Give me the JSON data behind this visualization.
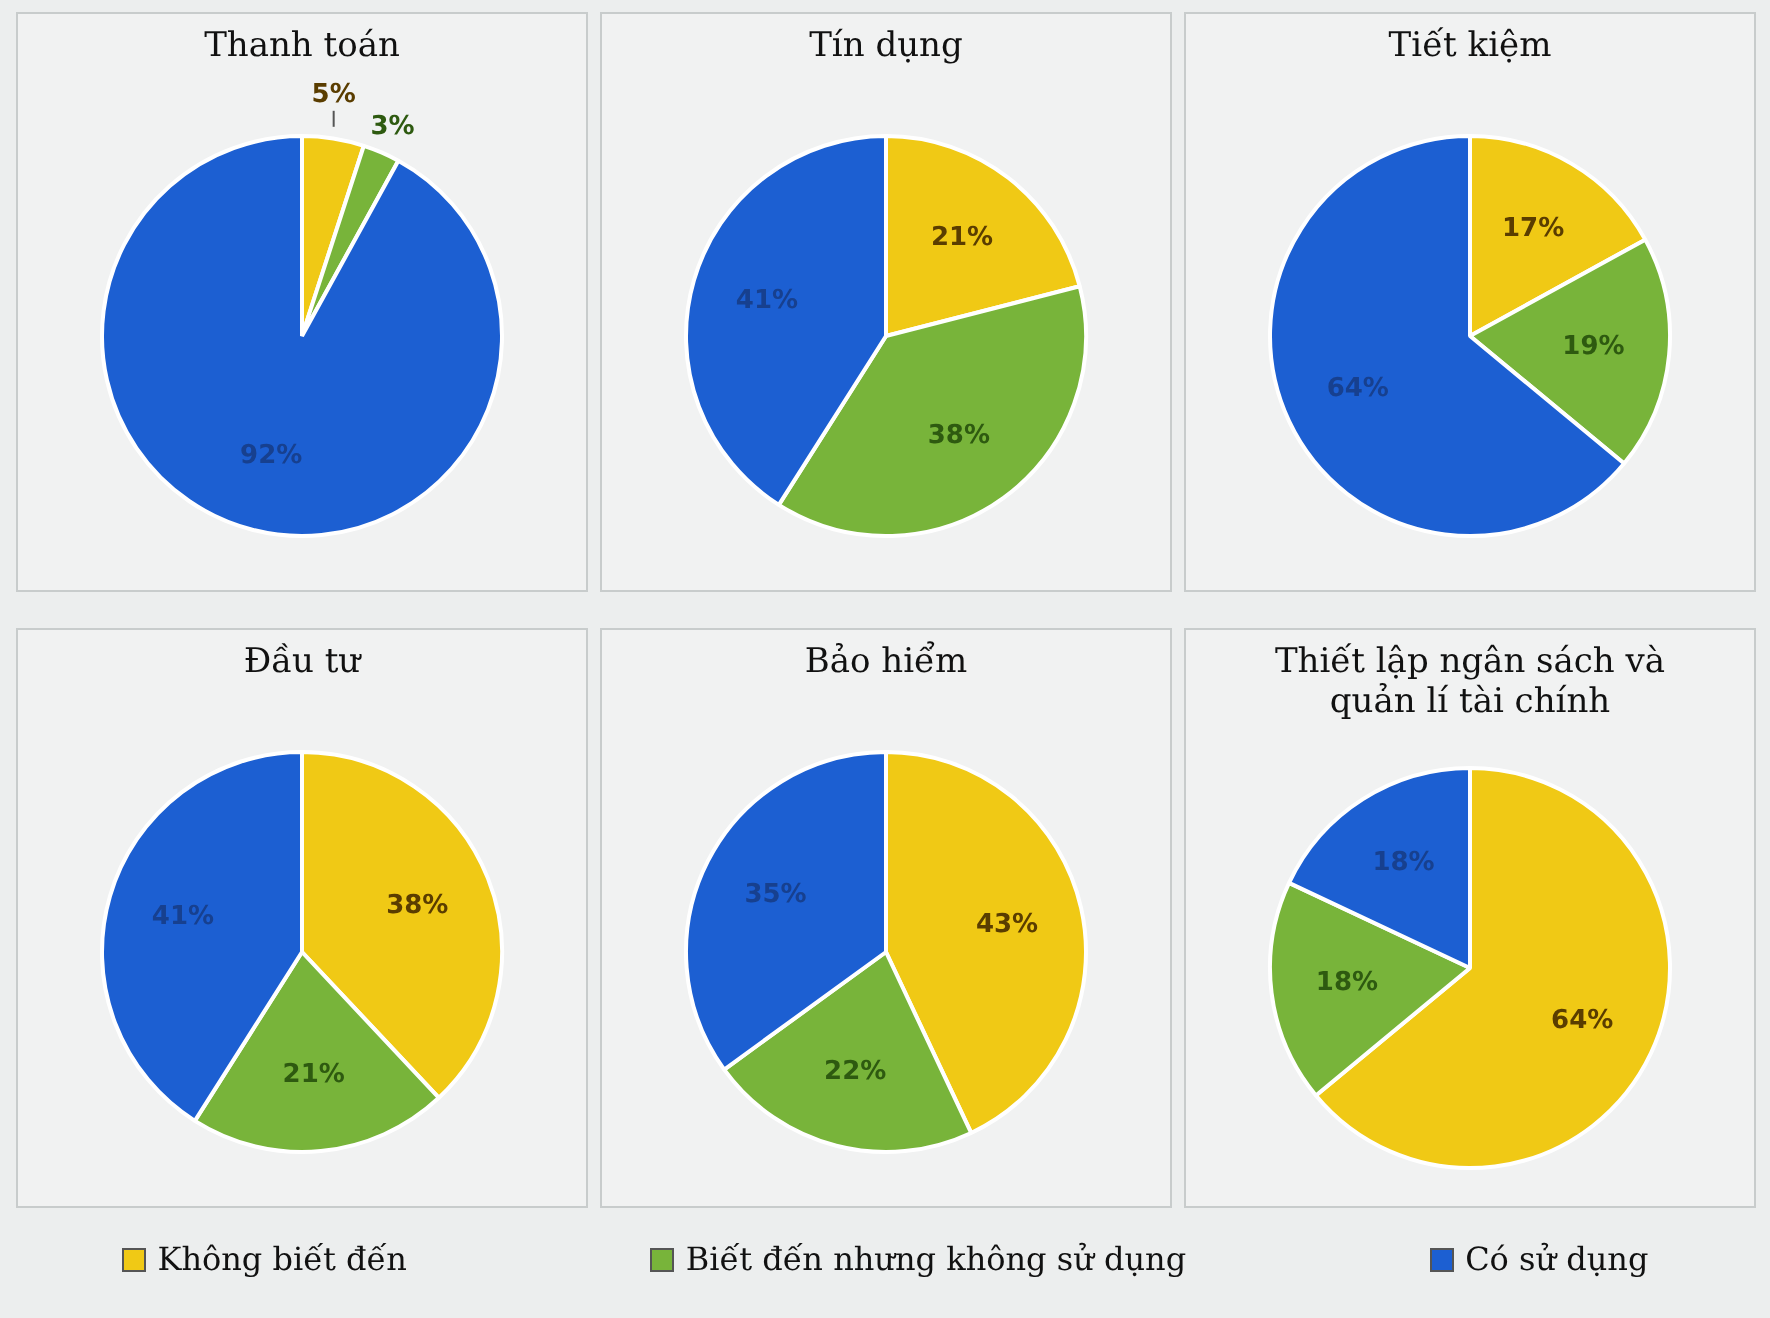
{
  "chart_data": [
    {
      "type": "pie",
      "title": "Thanh toán",
      "categories": [
        "Không biết đến",
        "Biết đến nhưng không sử dụng",
        "Có sử dụng"
      ],
      "values": [
        5,
        3,
        92
      ],
      "value_labels": [
        "5%",
        "3%",
        "92%"
      ],
      "colors": [
        "#f0c915",
        "#78b43a",
        "#1c5fd2"
      ],
      "legend": "bottom"
    },
    {
      "type": "pie",
      "title": "Tín dụng",
      "categories": [
        null,
        null,
        null
      ],
      "values": [
        21,
        38,
        41
      ],
      "value_labels": [
        "21%",
        "38%",
        "41%"
      ],
      "colors": [
        "#f0c915",
        "#78b43a",
        "#1c5fd2"
      ]
    },
    {
      "type": "pie",
      "title": "Tiết kiệm",
      "categories": [
        null,
        null,
        null
      ],
      "values": [
        17,
        19,
        64
      ],
      "value_labels": [
        "17%",
        "19%",
        "64%"
      ],
      "colors": [
        "#f0c915",
        "#78b43a",
        "#1c5fd2"
      ]
    },
    {
      "type": "pie",
      "title": "Đầu tư",
      "categories": [
        null,
        null,
        null
      ],
      "values": [
        38,
        21,
        41
      ],
      "value_labels": [
        "38%",
        "21%",
        "41%"
      ],
      "colors": [
        "#f0c915",
        "#78b43a",
        "#1c5fd2"
      ]
    },
    {
      "type": "pie",
      "title": "Bảo hiểm",
      "categories": [
        null,
        null,
        null
      ],
      "values": [
        43,
        22,
        35
      ],
      "value_labels": [
        "43%",
        "22%",
        "35%"
      ],
      "colors": [
        "#f0c915",
        "#78b43a",
        "#1c5fd2"
      ]
    },
    {
      "type": "pie",
      "title": "Thiết lập ngân sách và quản lí tài chính",
      "categories": [
        null,
        null,
        null
      ],
      "values": [
        64,
        18,
        18
      ],
      "value_labels": [
        "64%",
        "18%",
        "18%"
      ],
      "colors": [
        "#f0c915",
        "#78b43a",
        "#1c5fd2"
      ]
    }
  ]
}
